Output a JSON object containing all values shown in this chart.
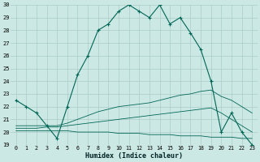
{
  "xlabel": "Humidex (Indice chaleur)",
  "bg_color": "#cce8e4",
  "grid_color": "#aaccc8",
  "line_color": "#006655",
  "xlim": [
    -0.5,
    23.5
  ],
  "ylim": [
    19,
    30
  ],
  "xticks": [
    0,
    1,
    2,
    3,
    4,
    5,
    6,
    7,
    8,
    9,
    10,
    11,
    12,
    13,
    14,
    15,
    16,
    17,
    18,
    19,
    20,
    21,
    22,
    23
  ],
  "yticks": [
    19,
    20,
    21,
    22,
    23,
    24,
    25,
    26,
    27,
    28,
    29,
    30
  ],
  "line1_x": [
    0,
    1,
    2,
    3,
    4,
    5,
    6,
    7,
    8,
    9,
    10,
    11,
    12,
    13,
    14,
    15,
    16,
    17,
    18,
    19,
    20,
    21,
    22,
    23
  ],
  "line1_y": [
    22.5,
    22.0,
    21.5,
    20.5,
    19.5,
    22.0,
    24.5,
    26.0,
    28.0,
    28.5,
    29.5,
    30.0,
    29.5,
    29.0,
    30.0,
    28.5,
    29.0,
    27.8,
    26.5,
    24.0,
    20.0,
    21.5,
    20.0,
    19.0
  ],
  "line2_x": [
    0,
    1,
    2,
    3,
    4,
    5,
    6,
    7,
    8,
    9,
    10,
    11,
    12,
    13,
    14,
    15,
    16,
    17,
    18,
    19,
    20,
    21,
    22,
    23
  ],
  "line2_y": [
    20.5,
    20.5,
    20.5,
    20.5,
    20.5,
    20.7,
    21.0,
    21.3,
    21.6,
    21.8,
    22.0,
    22.1,
    22.2,
    22.3,
    22.5,
    22.7,
    22.9,
    23.0,
    23.2,
    23.3,
    22.8,
    22.5,
    22.0,
    21.5
  ],
  "line3_x": [
    0,
    1,
    2,
    3,
    4,
    5,
    6,
    7,
    8,
    9,
    10,
    11,
    12,
    13,
    14,
    15,
    16,
    17,
    18,
    19,
    20,
    21,
    22,
    23
  ],
  "line3_y": [
    20.3,
    20.3,
    20.3,
    20.4,
    20.4,
    20.5,
    20.6,
    20.7,
    20.8,
    20.9,
    21.0,
    21.1,
    21.2,
    21.3,
    21.4,
    21.5,
    21.6,
    21.7,
    21.8,
    21.9,
    21.5,
    21.0,
    20.5,
    20.0
  ],
  "line4_x": [
    0,
    1,
    2,
    3,
    4,
    5,
    6,
    7,
    8,
    9,
    10,
    11,
    12,
    13,
    14,
    15,
    16,
    17,
    18,
    19,
    20,
    21,
    22,
    23
  ],
  "line4_y": [
    20.1,
    20.1,
    20.1,
    20.1,
    20.1,
    20.1,
    20.0,
    20.0,
    20.0,
    20.0,
    19.9,
    19.9,
    19.9,
    19.8,
    19.8,
    19.8,
    19.7,
    19.7,
    19.7,
    19.6,
    19.6,
    19.6,
    19.5,
    19.5
  ]
}
